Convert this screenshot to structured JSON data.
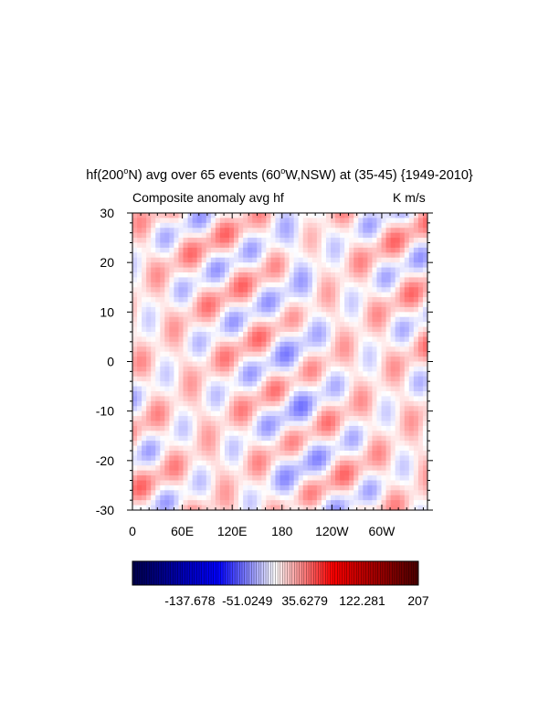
{
  "chart_data": {
    "type": "heatmap",
    "title": {
      "prefix": "hf(200",
      "sup1": "o",
      "middle": "N) avg over 65 events (60",
      "sup2": "o",
      "suffix": "W,NSW) at (35-45) {1949-2010}"
    },
    "left_string": "Composite anomaly avg hf",
    "right_string": "K m/s",
    "x_ticks": [
      "0",
      "60E",
      "120E",
      "180",
      "120W",
      "60W"
    ],
    "x_tick_values": [
      0,
      60,
      120,
      180,
      240,
      300
    ],
    "xlim": [
      0,
      355
    ],
    "y_ticks": [
      "30",
      "20",
      "10",
      "0",
      "-10",
      "-20",
      "-30"
    ],
    "y_tick_values": [
      30,
      20,
      10,
      0,
      -10,
      -20,
      -30
    ],
    "ylim": [
      -30,
      30
    ],
    "field_note": "weak positive and negative anomalies in diagonal bands; magnitudes mostly within ±40 K m/s",
    "colorbar": {
      "labels": [
        "-137.678",
        "-51.0249",
        "35.6279",
        "122.281",
        "207"
      ],
      "label_values": [
        -137.678,
        -51.0249,
        35.6279,
        122.281,
        207
      ],
      "range": [
        -224.332,
        207
      ],
      "colormap": "blue-white-red",
      "colors": {
        "dark_blue": "#00004a",
        "blue": "#0000ff",
        "white": "#ffffff",
        "red": "#ff0000",
        "dark_red": "#4a0000"
      }
    }
  }
}
